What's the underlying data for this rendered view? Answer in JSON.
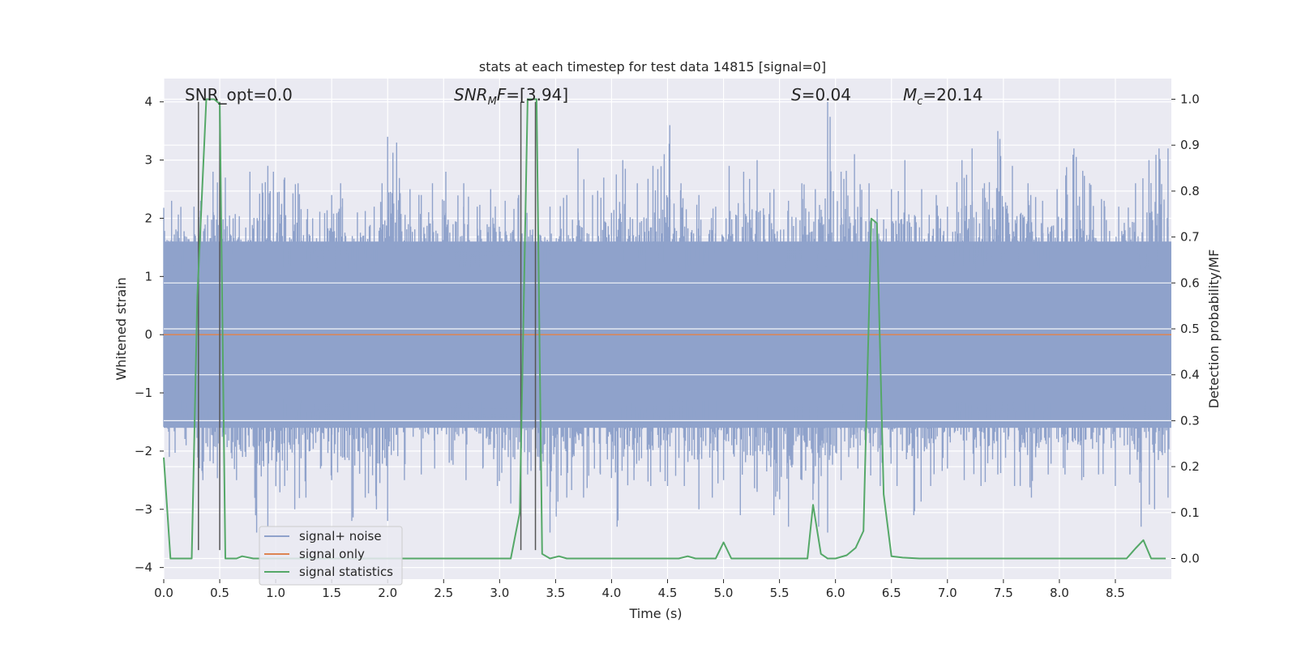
{
  "chart_data": {
    "type": "line",
    "title": "stats at each timestep for test data 14815 [signal=0]",
    "xlabel": "Time (s)",
    "ylabel_left": "Whitened strain",
    "ylabel_right": "Detection probability/MF",
    "xlim": [
      0.0,
      9.0
    ],
    "ylim_left": [
      -4.2,
      4.4
    ],
    "ylim_right": [
      -0.045,
      1.045
    ],
    "grid": true,
    "x_ticks": [
      0.0,
      0.5,
      1.0,
      1.5,
      2.0,
      2.5,
      3.0,
      3.5,
      4.0,
      4.5,
      5.0,
      5.5,
      6.0,
      6.5,
      7.0,
      7.5,
      8.0,
      8.5
    ],
    "x_tick_labels": [
      "0.0",
      "0.5",
      "1.0",
      "1.5",
      "2.0",
      "2.5",
      "3.0",
      "3.5",
      "4.0",
      "4.5",
      "5.0",
      "5.5",
      "6.0",
      "6.5",
      "7.0",
      "7.5",
      "8.0",
      "8.5"
    ],
    "y_ticks_left": [
      4,
      3,
      2,
      1,
      0,
      -1,
      -2,
      -3,
      -4
    ],
    "y_tick_labels_left": [
      "4",
      "3",
      "2",
      "1",
      "0",
      "−1",
      "−2",
      "−3",
      "−4"
    ],
    "y_ticks_right": [
      1.0,
      0.9,
      0.8,
      0.7,
      0.6,
      0.5,
      0.4,
      0.3,
      0.2,
      0.1,
      0.0
    ],
    "y_tick_labels_right": [
      "1.0",
      "0.9",
      "0.8",
      "0.7",
      "0.6",
      "0.5",
      "0.4",
      "0.3",
      "0.2",
      "0.1",
      "0.0"
    ],
    "annotations": {
      "snr_opt": "SNR_opt=0.0",
      "snr_mf_sym": "SNR",
      "snr_mf_sub": "M",
      "snr_mf_sym2": "F",
      "snr_mf_val": "=[3.94]",
      "s_sym": "S",
      "s_val": "=0.04",
      "mc_sym": "M",
      "mc_sub": "c",
      "mc_val": "=20.14"
    },
    "legend": {
      "position": "lower-left",
      "entries": [
        "signal+ noise",
        "signal only",
        "signal statistics"
      ]
    },
    "series": [
      {
        "name": "signal+ noise",
        "axis": "left",
        "style": "dense noise fill",
        "color": "#8fa2cb",
        "band_envelope": {
          "low": -1.6,
          "high": 1.6
        },
        "peaks": [
          {
            "x": 0.07,
            "y": 2.3
          },
          {
            "x": 0.27,
            "y": 2.2
          },
          {
            "x": 0.33,
            "y": 2.3
          },
          {
            "x": 0.44,
            "y": 2.8
          },
          {
            "x": 0.55,
            "y": 2.7
          },
          {
            "x": 0.62,
            "y": 2.0
          },
          {
            "x": 0.77,
            "y": 2.8
          },
          {
            "x": 0.88,
            "y": 2.6
          },
          {
            "x": 0.93,
            "y": 2.9
          },
          {
            "x": 0.98,
            "y": 2.8
          },
          {
            "x": 1.08,
            "y": 2.7
          },
          {
            "x": 1.2,
            "y": 2.6
          },
          {
            "x": 1.33,
            "y": 2.0
          },
          {
            "x": 1.5,
            "y": 2.4
          },
          {
            "x": 1.58,
            "y": 2.6
          },
          {
            "x": 1.73,
            "y": 2.1
          },
          {
            "x": 1.88,
            "y": 2.2
          },
          {
            "x": 1.95,
            "y": 2.6
          },
          {
            "x": 2.0,
            "y": 3.4
          },
          {
            "x": 2.08,
            "y": 3.3
          },
          {
            "x": 2.2,
            "y": 2.5
          },
          {
            "x": 2.3,
            "y": 2.4
          },
          {
            "x": 2.4,
            "y": 2.6
          },
          {
            "x": 2.52,
            "y": 2.8
          },
          {
            "x": 2.68,
            "y": 2.6
          },
          {
            "x": 2.8,
            "y": 2.2
          },
          {
            "x": 2.92,
            "y": 2.5
          },
          {
            "x": 3.05,
            "y": 2.3
          },
          {
            "x": 3.17,
            "y": 2.4
          },
          {
            "x": 3.45,
            "y": 2.2
          },
          {
            "x": 3.6,
            "y": 2.4
          },
          {
            "x": 3.7,
            "y": 3.2
          },
          {
            "x": 3.83,
            "y": 2.4
          },
          {
            "x": 3.93,
            "y": 2.7
          },
          {
            "x": 4.1,
            "y": 3.0
          },
          {
            "x": 4.23,
            "y": 2.6
          },
          {
            "x": 4.37,
            "y": 2.9
          },
          {
            "x": 4.47,
            "y": 3.1
          },
          {
            "x": 4.52,
            "y": 3.6
          },
          {
            "x": 4.62,
            "y": 2.6
          },
          {
            "x": 4.78,
            "y": 2.4
          },
          {
            "x": 4.93,
            "y": 2.2
          },
          {
            "x": 5.05,
            "y": 2.9
          },
          {
            "x": 5.18,
            "y": 2.8
          },
          {
            "x": 5.3,
            "y": 3.0
          },
          {
            "x": 5.45,
            "y": 2.5
          },
          {
            "x": 5.58,
            "y": 2.3
          },
          {
            "x": 5.7,
            "y": 2.6
          },
          {
            "x": 5.82,
            "y": 2.5
          },
          {
            "x": 5.93,
            "y": 4.0
          },
          {
            "x": 6.05,
            "y": 2.8
          },
          {
            "x": 6.17,
            "y": 3.1
          },
          {
            "x": 6.3,
            "y": 2.6
          },
          {
            "x": 6.5,
            "y": 2.5
          },
          {
            "x": 6.62,
            "y": 3.0
          },
          {
            "x": 6.77,
            "y": 2.5
          },
          {
            "x": 6.9,
            "y": 2.4
          },
          {
            "x": 7.0,
            "y": 2.2
          },
          {
            "x": 7.13,
            "y": 3.0
          },
          {
            "x": 7.22,
            "y": 3.2
          },
          {
            "x": 7.33,
            "y": 2.6
          },
          {
            "x": 7.45,
            "y": 3.5
          },
          {
            "x": 7.58,
            "y": 2.9
          },
          {
            "x": 7.72,
            "y": 2.6
          },
          {
            "x": 7.85,
            "y": 2.3
          },
          {
            "x": 7.98,
            "y": 2.5
          },
          {
            "x": 8.13,
            "y": 3.2
          },
          {
            "x": 8.27,
            "y": 2.6
          },
          {
            "x": 8.4,
            "y": 2.3
          },
          {
            "x": 8.53,
            "y": 2.2
          },
          {
            "x": 8.68,
            "y": 2.6
          },
          {
            "x": 8.8,
            "y": 3.0
          },
          {
            "x": 8.89,
            "y": 3.2
          },
          {
            "x": 8.97,
            "y": 3.2
          }
        ],
        "troughs": [
          {
            "x": 0.05,
            "y": -2.1
          },
          {
            "x": 0.2,
            "y": -1.9
          },
          {
            "x": 0.35,
            "y": -2.5
          },
          {
            "x": 0.65,
            "y": -2.5
          },
          {
            "x": 0.83,
            "y": -3.4
          },
          {
            "x": 0.93,
            "y": -3.3
          },
          {
            "x": 1.08,
            "y": -2.6
          },
          {
            "x": 1.17,
            "y": -3.0
          },
          {
            "x": 1.27,
            "y": -2.8
          },
          {
            "x": 1.4,
            "y": -2.3
          },
          {
            "x": 1.5,
            "y": -2.5
          },
          {
            "x": 1.68,
            "y": -3.2
          },
          {
            "x": 1.8,
            "y": -2.8
          },
          {
            "x": 1.9,
            "y": -3.0
          },
          {
            "x": 2.0,
            "y": -3.2
          },
          {
            "x": 2.15,
            "y": -2.5
          },
          {
            "x": 2.3,
            "y": -2.4
          },
          {
            "x": 2.42,
            "y": -2.3
          },
          {
            "x": 2.55,
            "y": -2.2
          },
          {
            "x": 2.7,
            "y": -2.5
          },
          {
            "x": 2.85,
            "y": -2.3
          },
          {
            "x": 2.98,
            "y": -2.6
          },
          {
            "x": 3.1,
            "y": -2.9
          },
          {
            "x": 3.25,
            "y": -2.4
          },
          {
            "x": 3.45,
            "y": -3.4
          },
          {
            "x": 3.6,
            "y": -2.8
          },
          {
            "x": 3.75,
            "y": -2.8
          },
          {
            "x": 3.9,
            "y": -2.4
          },
          {
            "x": 4.05,
            "y": -3.3
          },
          {
            "x": 4.2,
            "y": -2.5
          },
          {
            "x": 4.35,
            "y": -2.6
          },
          {
            "x": 4.5,
            "y": -2.6
          },
          {
            "x": 4.65,
            "y": -2.6
          },
          {
            "x": 4.78,
            "y": -3.0
          },
          {
            "x": 4.9,
            "y": -2.8
          },
          {
            "x": 5.0,
            "y": -2.5
          },
          {
            "x": 5.15,
            "y": -3.1
          },
          {
            "x": 5.3,
            "y": -2.7
          },
          {
            "x": 5.45,
            "y": -3.1
          },
          {
            "x": 5.58,
            "y": -3.3
          },
          {
            "x": 5.7,
            "y": -2.5
          },
          {
            "x": 5.85,
            "y": -3.3
          },
          {
            "x": 5.93,
            "y": -3.4
          },
          {
            "x": 6.05,
            "y": -2.5
          },
          {
            "x": 6.2,
            "y": -2.3
          },
          {
            "x": 6.4,
            "y": -2.6
          },
          {
            "x": 6.55,
            "y": -2.6
          },
          {
            "x": 6.7,
            "y": -3.1
          },
          {
            "x": 6.85,
            "y": -2.6
          },
          {
            "x": 7.0,
            "y": -2.3
          },
          {
            "x": 7.15,
            "y": -2.5
          },
          {
            "x": 7.3,
            "y": -2.6
          },
          {
            "x": 7.45,
            "y": -2.4
          },
          {
            "x": 7.6,
            "y": -2.6
          },
          {
            "x": 7.75,
            "y": -2.8
          },
          {
            "x": 7.9,
            "y": -2.4
          },
          {
            "x": 8.05,
            "y": -2.4
          },
          {
            "x": 8.2,
            "y": -2.5
          },
          {
            "x": 8.35,
            "y": -2.4
          },
          {
            "x": 8.5,
            "y": -2.6
          },
          {
            "x": 8.63,
            "y": -2.4
          },
          {
            "x": 8.73,
            "y": -3.3
          },
          {
            "x": 8.85,
            "y": -3.0
          },
          {
            "x": 8.97,
            "y": -2.8
          }
        ]
      },
      {
        "name": "signal only",
        "axis": "left",
        "color": "#dd8452",
        "x": [
          0.0,
          9.0
        ],
        "y": [
          0.0,
          0.0
        ]
      },
      {
        "name": "signal statistics",
        "axis": "right",
        "color": "#55a868",
        "x": [
          0.0,
          0.06,
          0.25,
          0.3,
          0.38,
          0.45,
          0.5,
          0.55,
          0.65,
          0.7,
          0.8,
          1.0,
          3.1,
          3.18,
          3.25,
          3.33,
          3.38,
          3.45,
          3.53,
          3.6,
          3.67,
          4.6,
          4.68,
          4.75,
          4.83,
          4.93,
          5.0,
          5.07,
          5.12,
          5.75,
          5.8,
          5.87,
          5.93,
          6.0,
          6.1,
          6.18,
          6.25,
          6.32,
          6.37,
          6.43,
          6.5,
          6.6,
          6.75,
          8.6,
          8.68,
          8.75,
          8.82,
          8.95
        ],
        "y": [
          0.22,
          0.0,
          0.0,
          0.57,
          1.0,
          1.0,
          0.99,
          0.0,
          0.0,
          0.005,
          0.0,
          0.0,
          0.0,
          0.1,
          1.0,
          1.0,
          0.01,
          0.0,
          0.005,
          0.0,
          0.0,
          0.0,
          0.005,
          0.0,
          0.0,
          0.0,
          0.035,
          0.0,
          0.0,
          0.0,
          0.117,
          0.01,
          0.0,
          0.0,
          0.007,
          0.023,
          0.06,
          0.74,
          0.73,
          0.14,
          0.005,
          0.002,
          0.0,
          0.0,
          0.022,
          0.04,
          0.0,
          0.0
        ]
      }
    ],
    "marker_lines": {
      "x": [
        0.31,
        0.5,
        3.19,
        3.32
      ],
      "y_top": 4.0,
      "y_bottom": -3.7,
      "color": "#555555"
    }
  }
}
